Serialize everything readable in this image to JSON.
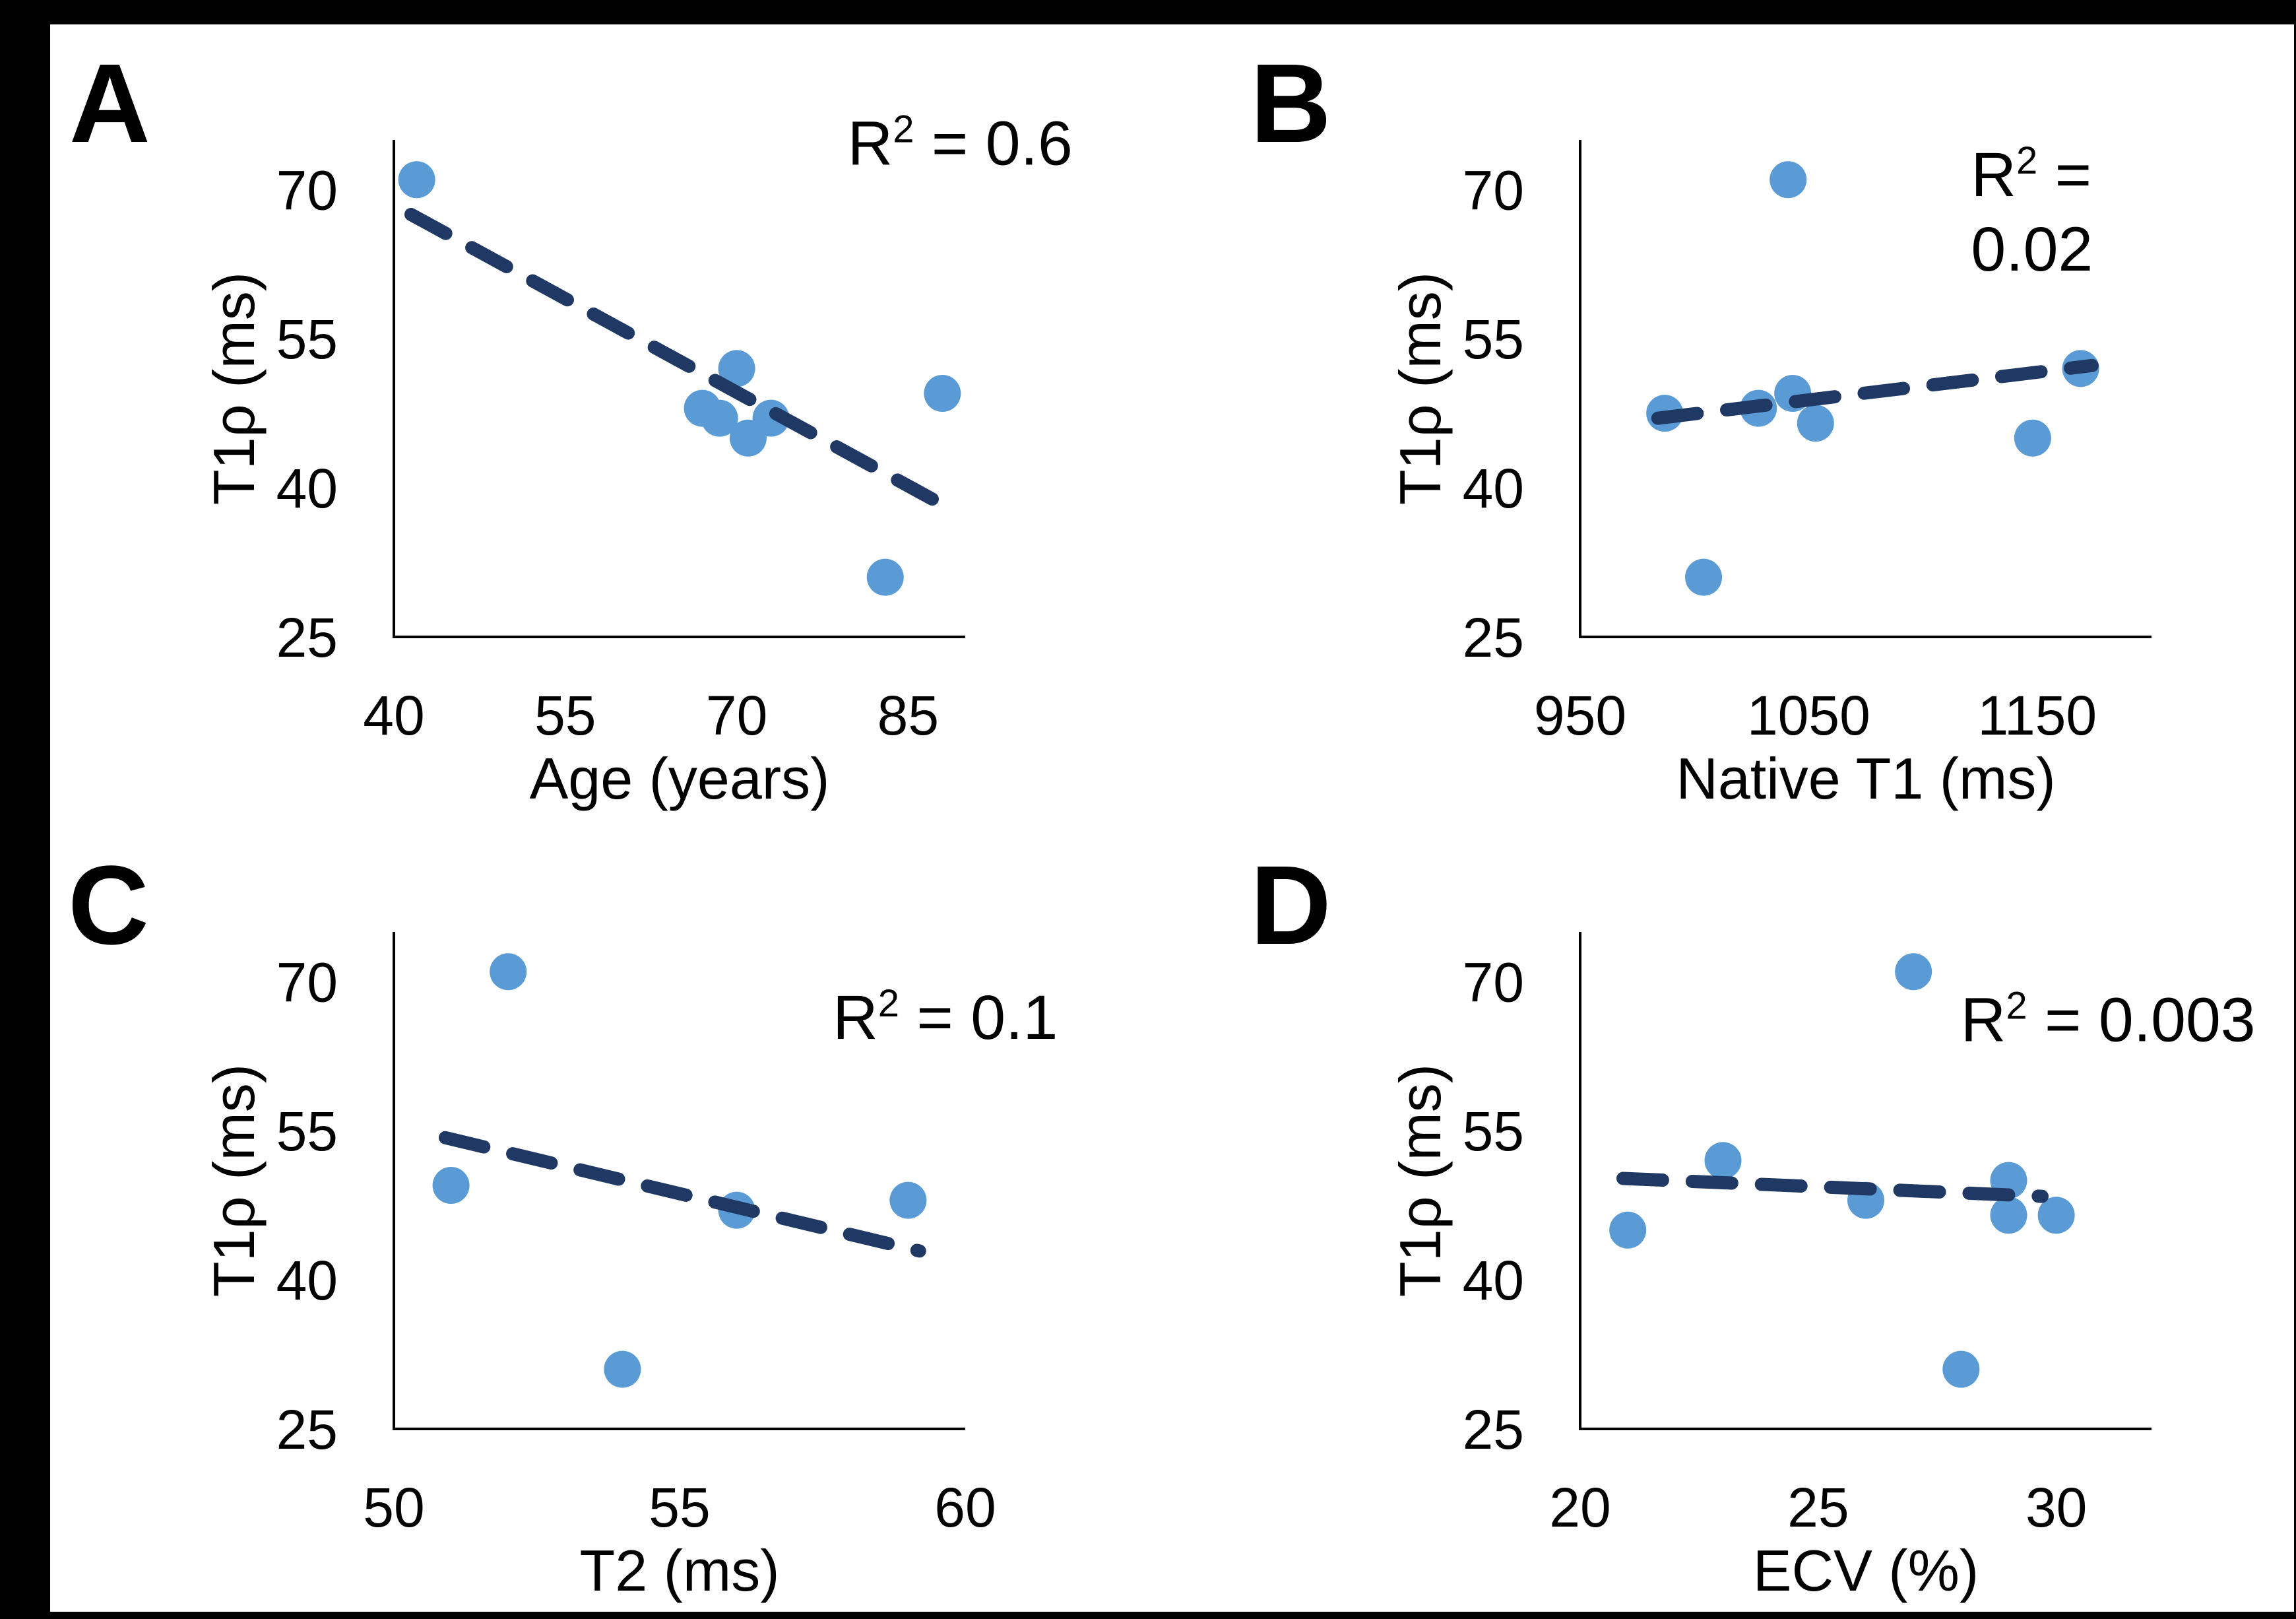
{
  "figure": {
    "background_color": "#000000",
    "panel_color": "#FFFFFF",
    "marker_color": "#5B9BD5",
    "trend_color": "#1F3864",
    "axis_color": "#000000",
    "text_color": "#000000"
  },
  "chart_data": [
    {
      "type": "scatter",
      "panel_letter": "A",
      "xlabel": "Age (years)",
      "ylabel": "T1ρ (ms)",
      "annotation_lines": [
        "R² = 0.6"
      ],
      "annotation_anchor": {
        "fx": 0.794,
        "fy": 0.05
      },
      "xlim": [
        40,
        90
      ],
      "ylim": [
        25,
        75
      ],
      "xticks": [
        40,
        55,
        70,
        85
      ],
      "yticks": [
        25,
        40,
        55,
        70
      ],
      "grid": false,
      "points": [
        [
          42,
          71
        ],
        [
          70,
          52
        ],
        [
          67,
          48
        ],
        [
          68.5,
          47
        ],
        [
          73,
          47
        ],
        [
          71,
          45
        ],
        [
          88,
          49.5
        ],
        [
          83,
          31
        ]
      ],
      "trend": {
        "style": "dashed",
        "x1": 41.5,
        "y1": 67.5,
        "x2": 88.5,
        "y2": 38
      }
    },
    {
      "type": "scatter",
      "panel_letter": "B",
      "xlabel": "Native T1 (ms)",
      "ylabel": "T1ρ (ms)",
      "annotation_lines": [
        "R² =",
        "0.02"
      ],
      "annotation_anchor": {
        "fx": 0.684,
        "fy": 0.113
      },
      "xlim": [
        950,
        1200
      ],
      "ylim": [
        25,
        75
      ],
      "xticks": [
        950,
        1050,
        1150
      ],
      "yticks": [
        25,
        40,
        55,
        70
      ],
      "grid": false,
      "points": [
        [
          1041,
          71
        ],
        [
          987,
          47.5
        ],
        [
          1028,
          48
        ],
        [
          1043,
          49.5
        ],
        [
          1053,
          46.5
        ],
        [
          1169,
          52
        ],
        [
          1148,
          45
        ],
        [
          1004,
          31
        ]
      ],
      "trend": {
        "style": "dashed",
        "x1": 984,
        "y1": 47,
        "x2": 1174,
        "y2": 52.3
      }
    },
    {
      "type": "scatter",
      "panel_letter": "C",
      "xlabel": "T2 (ms)",
      "ylabel": "T1ρ (ms)",
      "annotation_lines": [
        "R² = 0.1"
      ],
      "annotation_anchor": {
        "fx": 0.768,
        "fy": 0.215
      },
      "xlim": [
        50,
        60
      ],
      "ylim": [
        25,
        75
      ],
      "xticks": [
        50,
        55,
        60
      ],
      "yticks": [
        25,
        40,
        55,
        70
      ],
      "grid": false,
      "points": [
        [
          52,
          71
        ],
        [
          51,
          49.5
        ],
        [
          56,
          47
        ],
        [
          59,
          48
        ],
        [
          54,
          31
        ]
      ],
      "trend": {
        "style": "dashed",
        "x1": 50.9,
        "y1": 54.3,
        "x2": 59.2,
        "y2": 42.9
      }
    },
    {
      "type": "scatter",
      "panel_letter": "D",
      "xlabel": "ECV (%)",
      "ylabel": "T1ρ (ms)",
      "annotation_lines": [
        "R² = 0.003"
      ],
      "annotation_anchor": {
        "fx": 0.666,
        "fy": 0.22
      },
      "xlim": [
        20,
        32
      ],
      "ylim": [
        25,
        75
      ],
      "xticks": [
        20,
        25,
        30
      ],
      "yticks": [
        25,
        40,
        55,
        70
      ],
      "grid": false,
      "points": [
        [
          27,
          71
        ],
        [
          21,
          45
        ],
        [
          23,
          52
        ],
        [
          26,
          48
        ],
        [
          29,
          50
        ],
        [
          29,
          46.5
        ],
        [
          30,
          46.5
        ],
        [
          28,
          31
        ]
      ],
      "trend": {
        "style": "dashed",
        "x1": 20.9,
        "y1": 50.2,
        "x2": 29.7,
        "y2": 48.4
      }
    }
  ]
}
